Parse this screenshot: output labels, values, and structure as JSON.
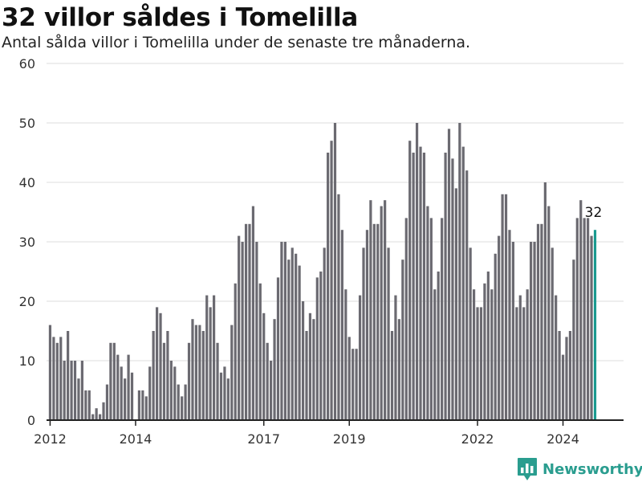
{
  "title": "32 villor såldes i Tomelilla",
  "subtitle": "Antal sålda villor i Tomelilla under de senaste tre månaderna.",
  "brand": {
    "name": "Newsworthy",
    "icon": "newsworthy-logo-icon",
    "color": "#2a9d8f"
  },
  "colors": {
    "bar": "#6b6a71",
    "highlight": "#1a9a90",
    "grid": "#dddddd",
    "axis": "#222222"
  },
  "chart_data": {
    "type": "bar",
    "title": "32 villor såldes i Tomelilla",
    "subtitle": "Antal sålda villor i Tomelilla under de senaste tre månaderna.",
    "xlabel": "",
    "ylabel": "",
    "ylim": [
      0,
      60
    ],
    "yticks": [
      0,
      10,
      20,
      30,
      40,
      50,
      60
    ],
    "grid": true,
    "xlim": [
      "2011-12",
      "2025-06"
    ],
    "xticks": [
      {
        "label": "2012",
        "date": "2012-01"
      },
      {
        "label": "2014",
        "date": "2014-01"
      },
      {
        "label": "2017",
        "date": "2017-01"
      },
      {
        "label": "2019",
        "date": "2019-01"
      },
      {
        "label": "2022",
        "date": "2022-01"
      },
      {
        "label": "2024",
        "date": "2024-01"
      }
    ],
    "series": [
      {
        "start": "2012-01",
        "frequency": "monthly",
        "values": [
          16,
          14,
          13,
          14,
          10,
          15,
          10,
          10,
          7,
          10,
          5,
          5,
          1,
          2,
          1,
          3,
          6,
          13,
          13,
          11,
          9,
          7,
          11,
          8,
          0,
          5,
          5,
          4,
          9,
          15,
          19,
          18,
          13,
          15,
          10,
          9,
          6,
          4,
          6,
          13,
          17,
          16,
          16,
          15,
          21,
          19,
          21,
          13,
          8,
          9,
          7,
          16,
          23,
          31,
          30,
          33,
          33,
          36,
          30,
          23,
          18,
          13,
          10,
          17,
          24,
          30,
          30,
          27,
          29,
          28,
          26,
          20,
          15,
          18,
          17,
          24,
          25,
          29,
          45,
          47,
          50,
          38,
          32,
          22,
          14,
          12,
          12,
          21,
          29,
          32,
          37,
          33,
          33,
          36,
          37,
          29,
          15,
          21,
          17,
          27,
          34,
          47,
          45,
          50,
          46,
          45,
          36,
          34,
          22,
          25,
          34,
          45,
          49,
          44,
          39,
          50,
          46,
          42,
          29,
          22,
          19,
          19,
          23,
          25,
          22,
          28,
          31,
          38,
          38,
          32,
          30,
          19,
          21,
          19,
          22,
          30,
          30,
          33,
          33,
          40,
          36,
          29,
          21,
          15,
          11,
          14,
          15,
          27,
          34,
          37,
          34,
          34,
          31,
          32
        ],
        "highlight_last": true
      }
    ],
    "annotations": [
      {
        "text": "32",
        "target": "last-bar"
      }
    ]
  }
}
